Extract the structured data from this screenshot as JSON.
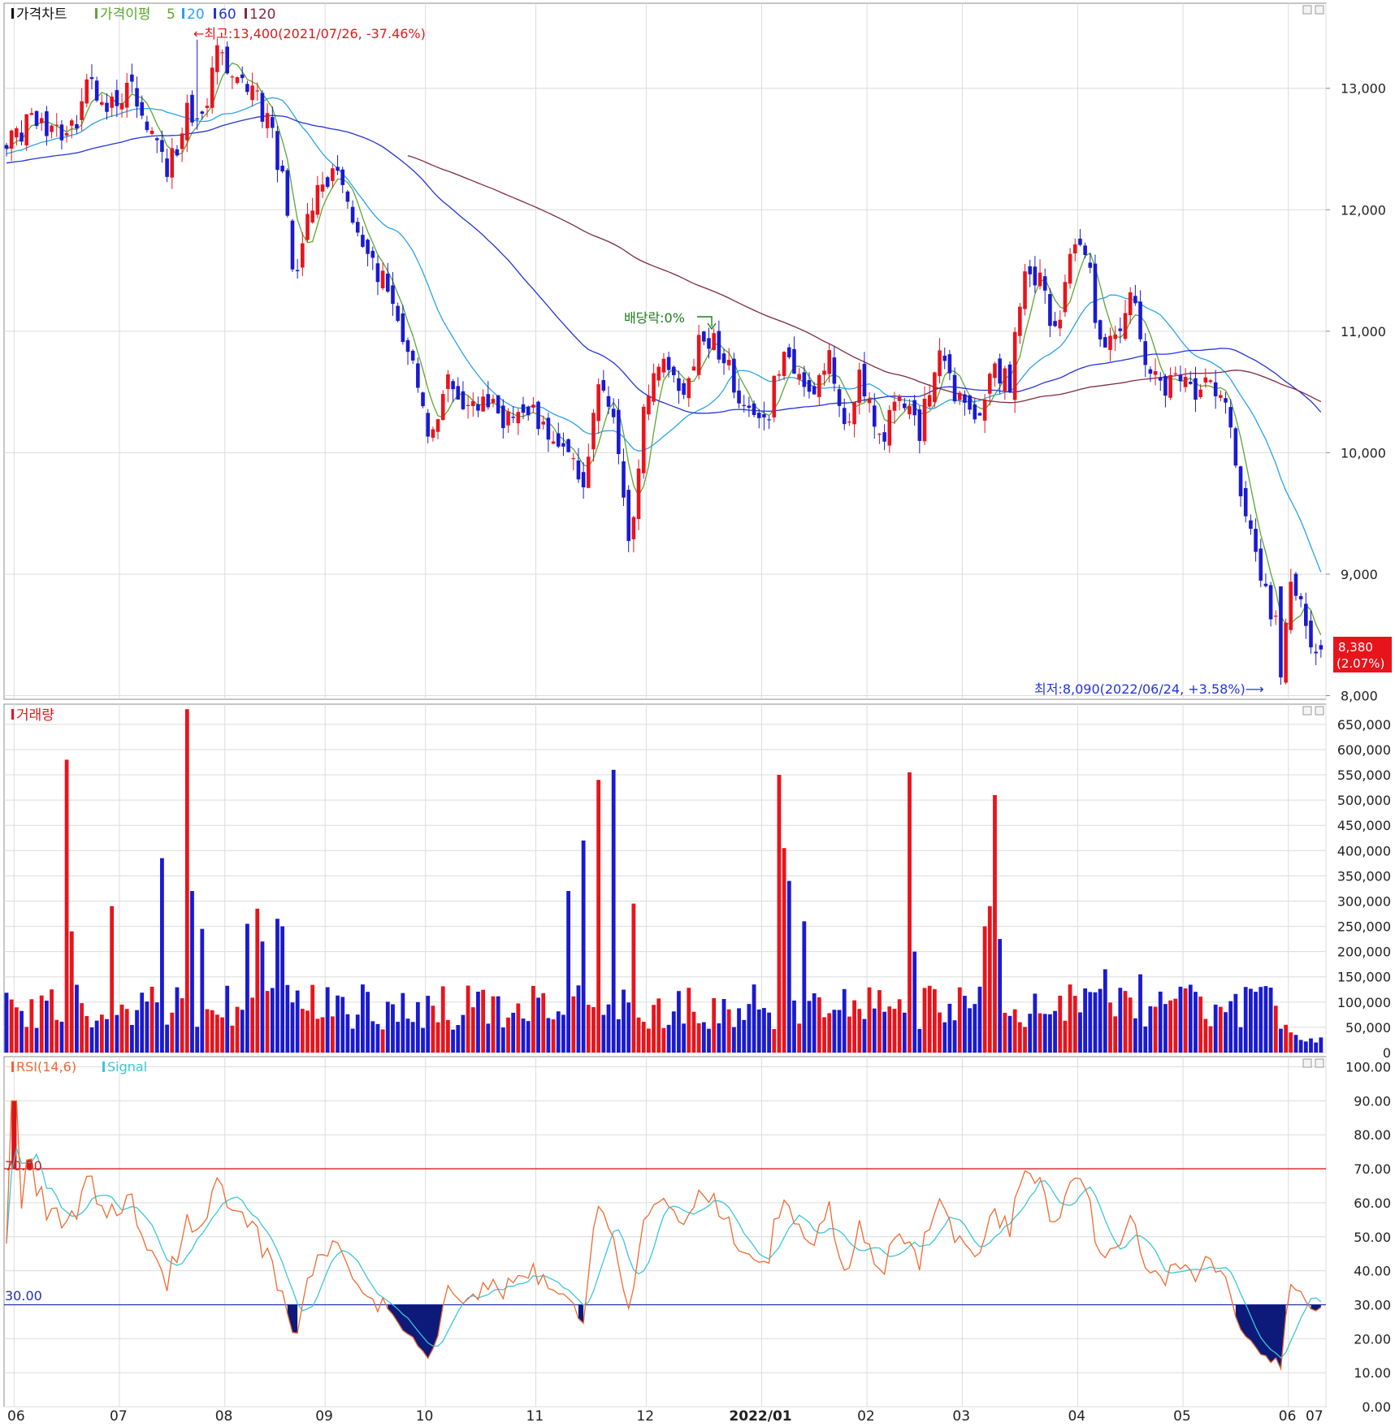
{
  "colors": {
    "up": "#e8141c",
    "down": "#1a1ad2",
    "ma5": "#5aa82e",
    "ma20": "#2aa3e8",
    "ma60": "#2434d8",
    "ma120": "#7e2a44",
    "rsi": "#f06a32",
    "signal": "#3cc6d6",
    "grid": "#dcdcdc",
    "price_tag": "#e8141c",
    "line70": "#cc2222",
    "line30": "#2233aa"
  },
  "price_panel": {
    "legend": {
      "chart": "가격차트",
      "ma_label": "가격이평",
      "ma5": "5",
      "ma20": "20",
      "ma60": "60",
      "ma120": "120"
    },
    "high_note": "←최고:13,400(2021/07/26, -37.46%)",
    "low_note": "최저:8,090(2022/06/24, +3.58%)⟶",
    "dividend_note": "배당락:0%",
    "last_price": "8,380",
    "last_change": "(2.07%)"
  },
  "volume_panel": {
    "legend": "거래량"
  },
  "rsi_panel": {
    "legend_rsi": "RSI(14,6)",
    "legend_signal": "Signal",
    "upper_label": "70.00",
    "lower_label": "30.00"
  },
  "chart_data": [
    {
      "type": "candlestick",
      "title": "가격차트",
      "ylim": [
        7970,
        13700
      ],
      "yticks": [
        "13,000",
        "12,000",
        "11,000",
        "10,000",
        "9,000",
        "8,000"
      ],
      "ytick_values": [
        13000,
        12000,
        11000,
        10000,
        9000,
        8000
      ],
      "x_tick_labels": [
        "06",
        "07",
        "08",
        "09",
        "10",
        "11",
        "12",
        "2022/01",
        "02",
        "03",
        "04",
        "05",
        "06",
        "07"
      ],
      "close_anchors": [
        [
          0,
          12600
        ],
        [
          5,
          12700
        ],
        [
          10,
          12600
        ],
        [
          14,
          12700
        ],
        [
          16,
          13000
        ],
        [
          20,
          12900
        ],
        [
          25,
          13000
        ],
        [
          28,
          12700
        ],
        [
          32,
          12300
        ],
        [
          36,
          12800
        ],
        [
          40,
          12900
        ],
        [
          42,
          13300
        ],
        [
          46,
          13000
        ],
        [
          50,
          12900
        ],
        [
          52,
          12700
        ],
        [
          55,
          12300
        ],
        [
          57,
          11500
        ],
        [
          59,
          11700
        ],
        [
          62,
          12200
        ],
        [
          66,
          12300
        ],
        [
          70,
          11900
        ],
        [
          74,
          11500
        ],
        [
          78,
          11100
        ],
        [
          81,
          10700
        ],
        [
          84,
          10100
        ],
        [
          88,
          10600
        ],
        [
          91,
          10300
        ],
        [
          95,
          10500
        ],
        [
          99,
          10200
        ],
        [
          103,
          10400
        ],
        [
          107,
          10200
        ],
        [
          111,
          10000
        ],
        [
          115,
          9800
        ],
        [
          118,
          10500
        ],
        [
          121,
          10300
        ],
        [
          124,
          9200
        ],
        [
          127,
          10300
        ],
        [
          130,
          10800
        ],
        [
          135,
          10500
        ],
        [
          139,
          11000
        ],
        [
          143,
          10800
        ],
        [
          147,
          10400
        ],
        [
          151,
          10200
        ],
        [
          155,
          10900
        ],
        [
          158,
          10600
        ],
        [
          161,
          10400
        ],
        [
          164,
          10800
        ],
        [
          167,
          10200
        ],
        [
          170,
          10600
        ],
        [
          174,
          10100
        ],
        [
          178,
          10400
        ],
        [
          182,
          10200
        ],
        [
          186,
          10800
        ],
        [
          190,
          10400
        ],
        [
          194,
          10300
        ],
        [
          197,
          10700
        ],
        [
          200,
          10600
        ],
        [
          203,
          11600
        ],
        [
          206,
          11400
        ],
        [
          209,
          11000
        ],
        [
          212,
          11600
        ],
        [
          215,
          11700
        ],
        [
          218,
          10900
        ],
        [
          221,
          11000
        ],
        [
          224,
          11300
        ],
        [
          227,
          10800
        ],
        [
          230,
          10500
        ],
        [
          233,
          10700
        ],
        [
          236,
          10500
        ],
        [
          239,
          10600
        ],
        [
          242,
          10500
        ],
        [
          245,
          10000
        ],
        [
          247,
          9500
        ],
        [
          250,
          8900
        ],
        [
          253,
          8600
        ],
        [
          254,
          8100
        ],
        [
          256,
          8900
        ],
        [
          258,
          8800
        ],
        [
          260,
          8300
        ],
        [
          262,
          8380
        ]
      ],
      "events": {
        "high": {
          "index": 38,
          "value": 13400,
          "date": "2021/07/26"
        },
        "low": {
          "index": 254,
          "value": 8090,
          "date": "2022/06/24"
        },
        "dividend_index": 141
      },
      "series": [
        {
          "name": "5",
          "window": 5
        },
        {
          "name": "20",
          "window": 20
        },
        {
          "name": "60",
          "window": 60
        },
        {
          "name": "120",
          "window": 120
        }
      ],
      "last": {
        "value": 8380,
        "change_pct": 2.07
      }
    },
    {
      "type": "bar",
      "title": "거래량",
      "ylim": [
        0,
        690000
      ],
      "yticks": [
        "650,000",
        "600,000",
        "550,000",
        "500,000",
        "450,000",
        "400,000",
        "350,000",
        "300,000",
        "250,000",
        "200,000",
        "150,000",
        "100,000",
        "50,000",
        "0"
      ],
      "ytick_values": [
        650000,
        600000,
        550000,
        500000,
        450000,
        400000,
        350000,
        300000,
        250000,
        200000,
        150000,
        100000,
        50000,
        0
      ],
      "base_volume": 100000,
      "spikes": [
        [
          12,
          580000
        ],
        [
          13,
          240000
        ],
        [
          21,
          290000
        ],
        [
          31,
          385000
        ],
        [
          36,
          680000
        ],
        [
          37,
          320000
        ],
        [
          39,
          245000
        ],
        [
          48,
          255000
        ],
        [
          50,
          285000
        ],
        [
          51,
          220000
        ],
        [
          54,
          265000
        ],
        [
          55,
          250000
        ],
        [
          112,
          320000
        ],
        [
          115,
          420000
        ],
        [
          118,
          540000
        ],
        [
          121,
          560000
        ],
        [
          125,
          295000
        ],
        [
          154,
          550000
        ],
        [
          155,
          405000
        ],
        [
          156,
          340000
        ],
        [
          159,
          260000
        ],
        [
          180,
          555000
        ],
        [
          181,
          200000
        ],
        [
          197,
          510000
        ],
        [
          196,
          290000
        ],
        [
          195,
          250000
        ],
        [
          198,
          225000
        ],
        [
          219,
          165000
        ],
        [
          226,
          155000
        ],
        [
          241,
          95000
        ],
        [
          247,
          130000
        ],
        [
          250,
          130000
        ]
      ],
      "tail_volume": [
        [
          255,
          55000
        ],
        [
          256,
          40000
        ],
        [
          257,
          35000
        ],
        [
          258,
          25000
        ],
        [
          259,
          22000
        ],
        [
          260,
          28000
        ],
        [
          261,
          20000
        ],
        [
          262,
          30000
        ]
      ]
    },
    {
      "type": "line",
      "title": "RSI(14,6)",
      "ylim": [
        0,
        103
      ],
      "yticks": [
        "100.00",
        "90.00",
        "80.00",
        "70.00",
        "60.00",
        "50.00",
        "40.00",
        "30.00",
        "20.00",
        "10.00",
        "0.00"
      ],
      "ytick_values": [
        100,
        90,
        80,
        70,
        60,
        50,
        40,
        30,
        20,
        10,
        0
      ],
      "upper": 70,
      "lower": 30,
      "series": [
        {
          "name": "RSI(14,6)"
        },
        {
          "name": "Signal",
          "window": 6
        }
      ]
    }
  ]
}
